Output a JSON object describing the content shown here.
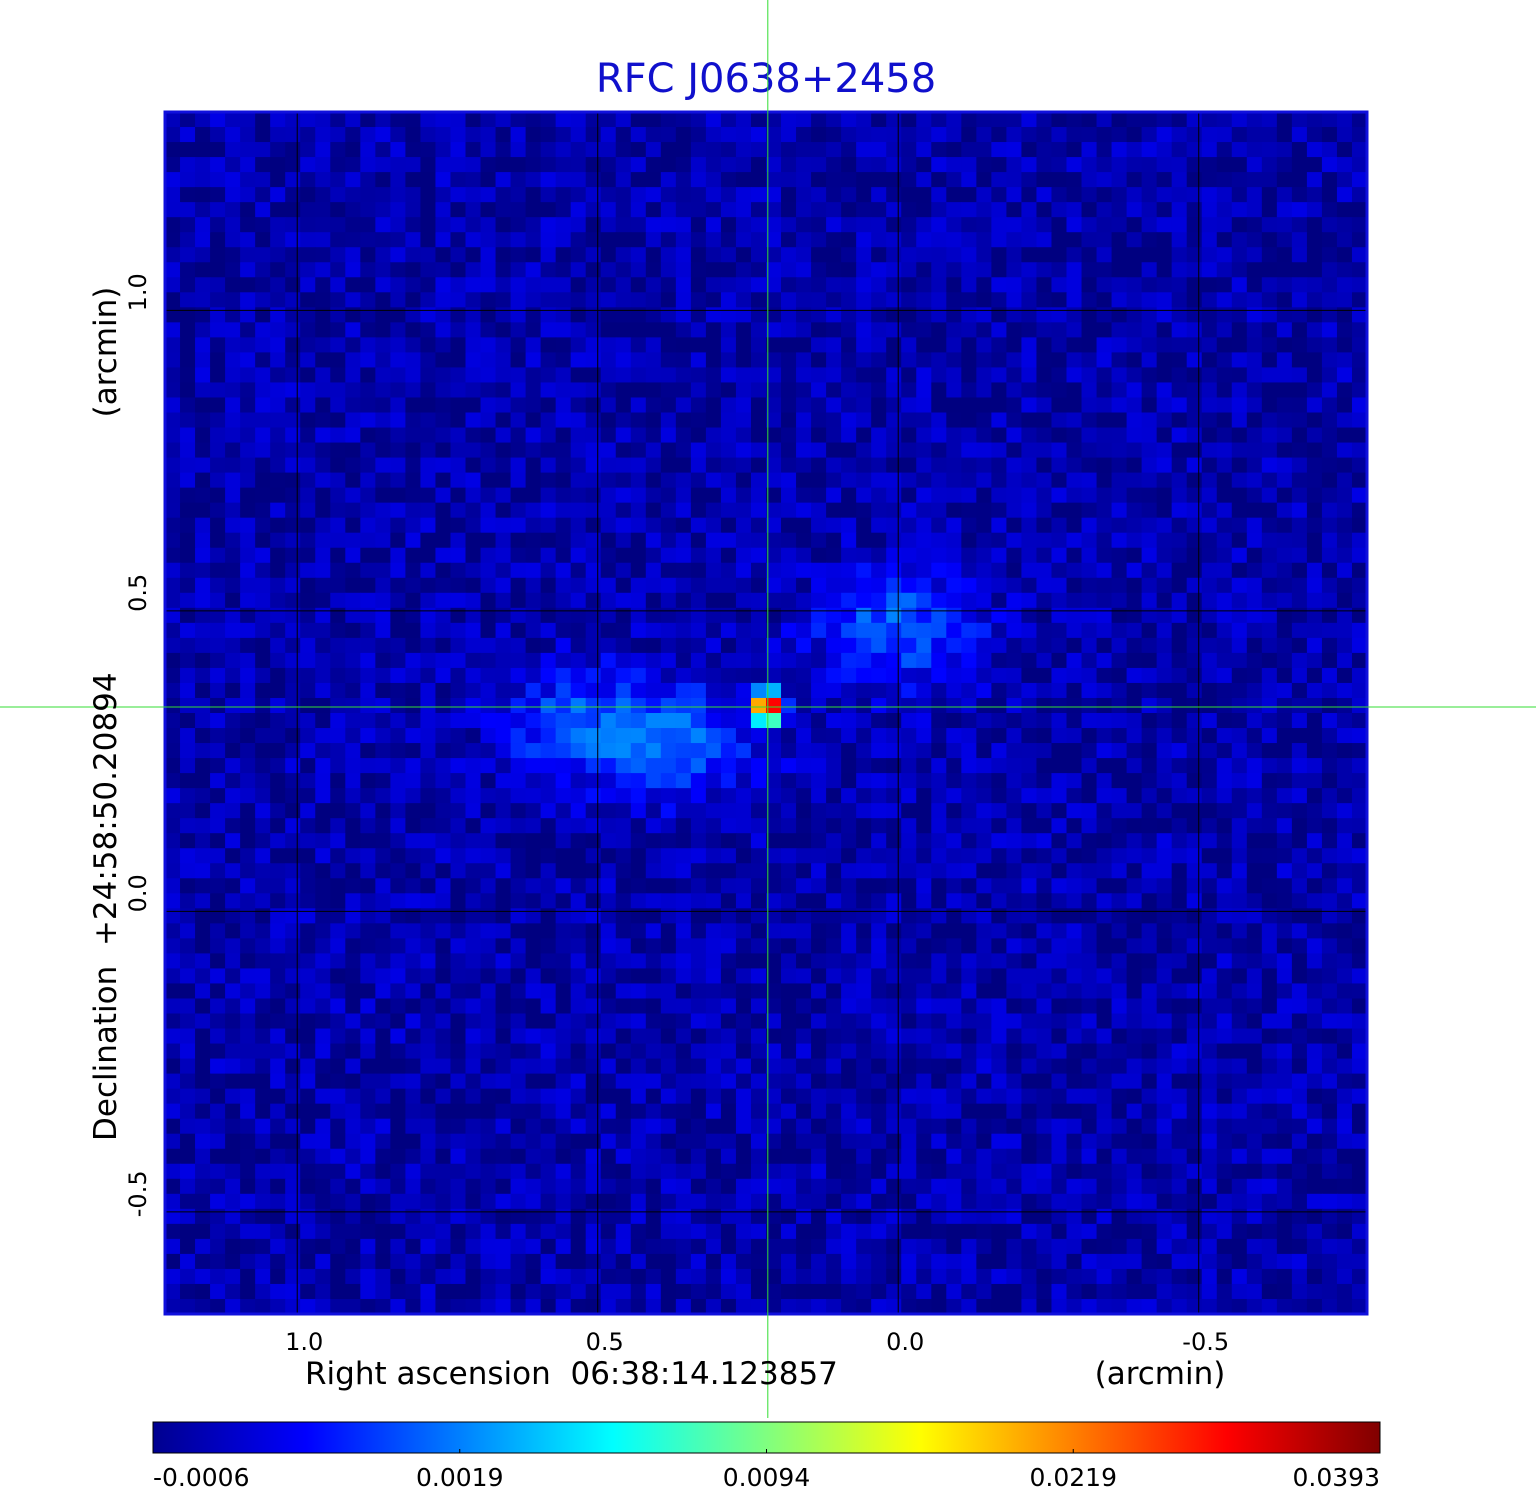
{
  "chart_data": {
    "type": "heatmap",
    "title": "RFC J0638+2458",
    "xlabel": "Right ascension  06:38:14.123857",
    "xlabel_unit": "(arcmin)",
    "ylabel": "Declination  +24:58:50.20894",
    "ylabel_unit": "(arcmin)",
    "x_ticks": [
      1.0,
      0.5,
      0.0,
      -0.5
    ],
    "x_tick_labels": [
      "1.0",
      "0.5",
      "0.0",
      "-0.5"
    ],
    "y_ticks": [
      1.0,
      0.5,
      0.0,
      -0.5
    ],
    "y_tick_labels": [
      "1.0",
      "0.5",
      "0.0",
      "-0.5"
    ],
    "xlim": [
      1.22,
      -0.78
    ],
    "ylim": [
      -0.67,
      1.33
    ],
    "grid": true,
    "crosshair": {
      "x": 0.217,
      "y": 0.34
    },
    "colormap": "jet",
    "colorbar": {
      "ticks": [
        "-0.0006",
        "0.0019",
        "0.0094",
        "0.0219",
        "0.0393"
      ],
      "range": [
        -0.0006,
        0.0393
      ],
      "scale": "nonlinear"
    },
    "peak": {
      "x": 0.217,
      "y": 0.34,
      "value": 0.0393
    },
    "background_level": -0.0002,
    "features": [
      {
        "x": 0.0,
        "y": 0.47,
        "value": 0.0016
      },
      {
        "x": 0.53,
        "y": 0.31,
        "value": 0.0013
      },
      {
        "x": 0.37,
        "y": 0.28,
        "value": 0.0015
      }
    ]
  },
  "colors": {
    "title": "#1010cc",
    "frame": "#1010dd",
    "crosshair": "#33dd33",
    "grid": "#000000"
  }
}
